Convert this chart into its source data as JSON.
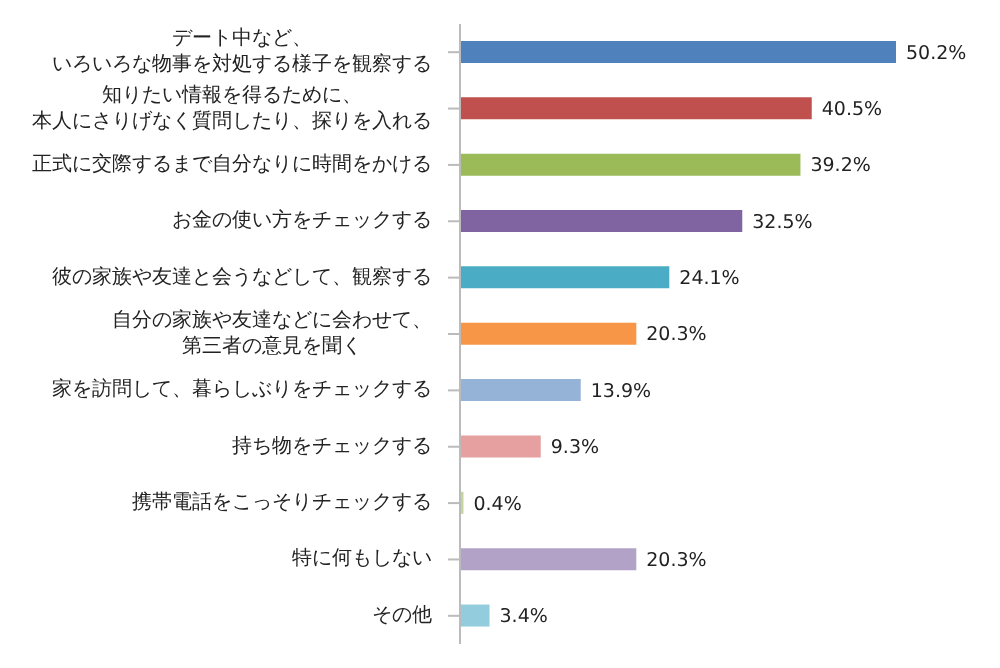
{
  "chart_data": {
    "type": "bar",
    "orientation": "horizontal",
    "categories": [
      "デート中など、いろいろな物事を対処する様子を観察する",
      "知りたい情報を得るために、本人にさりげなく質問したり、探りを入れる",
      "正式に交際するまで自分なりに時間をかける",
      "お金の使い方をチェックする",
      "彼の家族や友達と会うなどして、観察する",
      "自分の家族や友達などに会わせて、第三者の意見を聞く",
      "家を訪問して、暮らしぶりをチェックする",
      "持ち物をチェックする",
      "携帯電話をこっそりチェックする",
      "特に何もしない",
      "その他"
    ],
    "values": [
      50.2,
      40.5,
      39.2,
      32.5,
      24.1,
      20.3,
      13.9,
      9.3,
      0.4,
      20.3,
      3.4
    ],
    "value_labels": [
      "50.2%",
      "40.5%",
      "39.2%",
      "32.5%",
      "24.1%",
      "20.3%",
      "13.9%",
      "9.3%",
      "0.4%",
      "20.3%",
      "3.4%"
    ],
    "colors": [
      "#4f81bd",
      "#c0504d",
      "#9bbb59",
      "#8064a2",
      "#4bacc6",
      "#f79646",
      "#95b3d7",
      "#e6a0a0",
      "#c3d69b",
      "#b3a2c7",
      "#93cddd"
    ],
    "tick_labels": "y",
    "grid": false,
    "legend": false
  }
}
